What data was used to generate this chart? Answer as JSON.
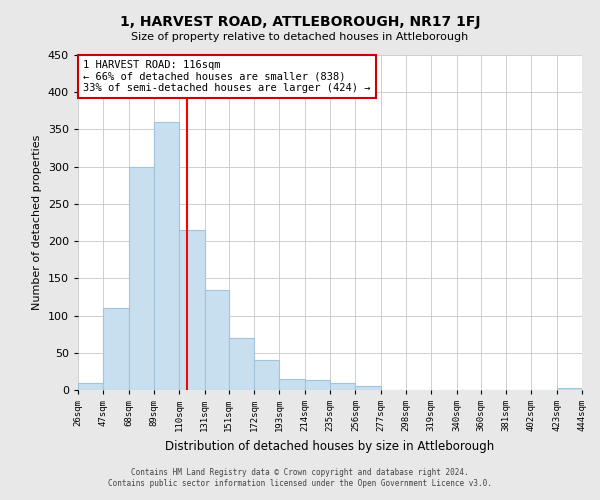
{
  "title": "1, HARVEST ROAD, ATTLEBOROUGH, NR17 1FJ",
  "subtitle": "Size of property relative to detached houses in Attleborough",
  "xlabel": "Distribution of detached houses by size in Attleborough",
  "ylabel": "Number of detached properties",
  "bar_color": "#c8dff0",
  "bar_edge_color": "#a0c4dc",
  "vline_color": "red",
  "vline_x": 116,
  "annotation_line1": "1 HARVEST ROAD: 116sqm",
  "annotation_line2": "← 66% of detached houses are smaller (838)",
  "annotation_line3": "33% of semi-detached houses are larger (424) →",
  "annotation_box_color": "white",
  "annotation_box_edge_color": "#cc0000",
  "bin_edges": [
    26,
    47,
    68,
    89,
    110,
    131,
    151,
    172,
    193,
    214,
    235,
    256,
    277,
    298,
    319,
    340,
    360,
    381,
    402,
    423,
    444
  ],
  "bar_heights": [
    10,
    110,
    300,
    360,
    215,
    135,
    70,
    40,
    15,
    13,
    10,
    6,
    0,
    0,
    0,
    0,
    0,
    0,
    0,
    3
  ],
  "ylim": [
    0,
    450
  ],
  "yticks": [
    0,
    50,
    100,
    150,
    200,
    250,
    300,
    350,
    400,
    450
  ],
  "footer_line1": "Contains HM Land Registry data © Crown copyright and database right 2024.",
  "footer_line2": "Contains public sector information licensed under the Open Government Licence v3.0.",
  "background_color": "#e8e8e8",
  "plot_background_color": "#ffffff",
  "grid_color": "#c8c8c8"
}
